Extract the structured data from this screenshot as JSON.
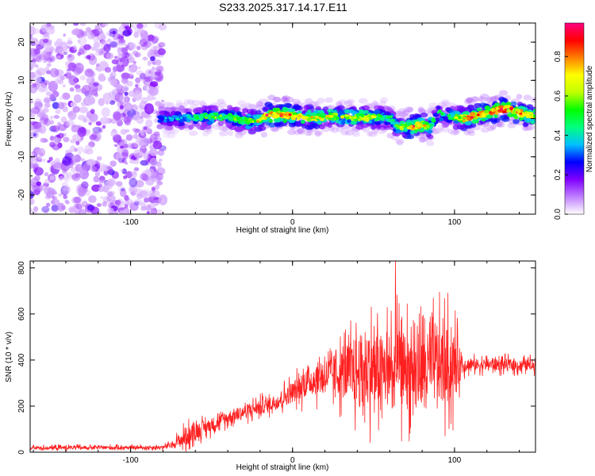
{
  "title": "S233.2025.317.14.17.E11",
  "chart_data": [
    {
      "type": "heatmap",
      "xlabel": "Height of straight line (km)",
      "ylabel": "Frequency (Hz)",
      "xlim": [
        -162,
        150
      ],
      "ylim": [
        -25,
        25
      ],
      "xticks": [
        -100,
        0,
        100
      ],
      "yticks": [
        -20,
        -10,
        0,
        10,
        20
      ],
      "colorbar": {
        "label": "Normalized spectral amplitude",
        "range": [
          0,
          0.97
        ],
        "ticks": [
          0.0,
          0.2,
          0.4,
          0.6,
          0.8
        ],
        "colormap": [
          "#ffffff",
          "#c080ff",
          "#8000ff",
          "#0000ff",
          "#00c0ff",
          "#00ff80",
          "#00ff00",
          "#c0ff00",
          "#ffff00",
          "#ff8000",
          "#ff0000",
          "#ff0080"
        ]
      },
      "noise_region_x": [
        -162,
        -80
      ],
      "ridge": {
        "x": [
          -82,
          -70,
          -60,
          -50,
          -40,
          -30,
          -22,
          -15,
          -5,
          5,
          15,
          25,
          35,
          45,
          55,
          60,
          65,
          70,
          75,
          80,
          85,
          90,
          95,
          100,
          105,
          110,
          115,
          120,
          125,
          130,
          135,
          140,
          145,
          150
        ],
        "frequency_hz": [
          0,
          0,
          0.3,
          0.5,
          0.5,
          -0.5,
          -1,
          1,
          1,
          0.5,
          0.3,
          0.6,
          0.5,
          0.2,
          0.5,
          0,
          -2,
          -2,
          -2,
          -1.5,
          -2,
          1.5,
          1,
          0.5,
          0,
          0.5,
          1,
          1.5,
          2,
          2.5,
          2.5,
          1.5,
          1,
          0.5
        ],
        "peak_amplitude": [
          0.35,
          0.4,
          0.5,
          0.6,
          0.55,
          0.6,
          0.7,
          0.95,
          0.9,
          0.8,
          0.75,
          0.7,
          0.7,
          0.75,
          0.55,
          0.5,
          0.6,
          0.85,
          0.9,
          0.8,
          0.6,
          0.55,
          0.5,
          0.6,
          0.8,
          0.9,
          0.85,
          0.9,
          0.95,
          0.95,
          0.95,
          0.9,
          0.85,
          0.8
        ]
      }
    },
    {
      "type": "line",
      "xlabel": "Height of straight line (km)",
      "ylabel": "SNR (10 * v/v)",
      "xlim": [
        -162,
        150
      ],
      "ylim": [
        0,
        830
      ],
      "xticks": [
        -100,
        0,
        100
      ],
      "yticks": [
        0,
        200,
        400,
        600,
        800
      ],
      "series": [
        {
          "name": "SNR",
          "color": "#ff2020",
          "x": [
            -162,
            -140,
            -120,
            -100,
            -90,
            -80,
            -75,
            -70,
            -65,
            -60,
            -55,
            -50,
            -45,
            -40,
            -35,
            -30,
            -25,
            -20,
            -15,
            -10,
            -5,
            0,
            5,
            10,
            15,
            20,
            25,
            30,
            35,
            40,
            45,
            50,
            55,
            60,
            65,
            70,
            75,
            80,
            85,
            90,
            95,
            100,
            105,
            110,
            115,
            120,
            125,
            130,
            135,
            140,
            145,
            150
          ],
          "baseline": [
            18,
            20,
            20,
            20,
            20,
            22,
            30,
            50,
            70,
            90,
            105,
            120,
            135,
            150,
            165,
            175,
            185,
            195,
            205,
            220,
            240,
            260,
            285,
            310,
            320,
            330,
            340,
            340,
            345,
            350,
            355,
            360,
            355,
            350,
            355,
            360,
            365,
            365,
            370,
            375,
            375,
            375,
            380,
            380,
            380,
            380,
            380,
            380,
            380,
            375,
            380,
            380
          ],
          "spread": [
            15,
            15,
            15,
            15,
            15,
            15,
            25,
            60,
            80,
            70,
            60,
            60,
            55,
            55,
            55,
            60,
            60,
            60,
            65,
            70,
            80,
            90,
            110,
            130,
            140,
            150,
            170,
            200,
            260,
            320,
            320,
            320,
            320,
            330,
            330,
            320,
            310,
            300,
            300,
            320,
            330,
            300,
            70,
            50,
            50,
            50,
            50,
            50,
            50,
            50,
            50,
            50
          ],
          "peak_max": 830
        }
      ]
    }
  ]
}
